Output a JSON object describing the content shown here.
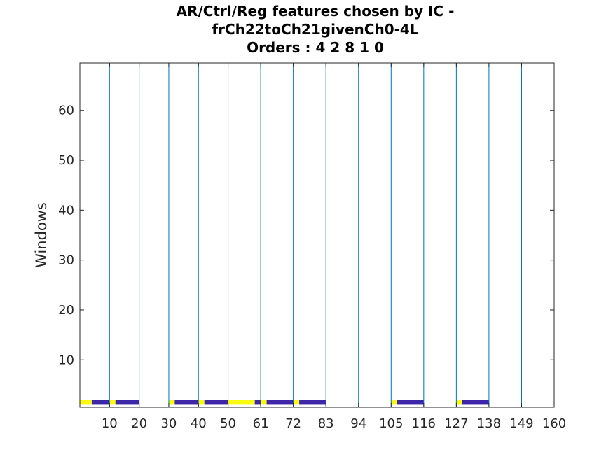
{
  "chart_data": {
    "type": "heatmap",
    "title_lines": [
      "AR/Ctrl/Reg features chosen by IC -",
      "frCh22toCh21givenCh0-4L",
      "Orders : 4 2 8 1 0"
    ],
    "ylabel": "Windows",
    "xlabel": "",
    "xlim": [
      0,
      160
    ],
    "ylim": [
      0.5,
      69.5
    ],
    "xticks": [
      {
        "value": 10,
        "label": "10"
      },
      {
        "value": 20,
        "label": "20"
      },
      {
        "value": 30,
        "label": "30"
      },
      {
        "value": 40,
        "label": "40"
      },
      {
        "value": 50,
        "label": "50"
      },
      {
        "value": 61,
        "label": "61"
      },
      {
        "value": 72,
        "label": "72"
      },
      {
        "value": 83,
        "label": "83"
      },
      {
        "value": 94,
        "label": "94"
      },
      {
        "value": 105,
        "label": "105"
      },
      {
        "value": 116,
        "label": "116"
      },
      {
        "value": 127,
        "label": "127"
      },
      {
        "value": 138,
        "label": "138"
      },
      {
        "value": 149,
        "label": "149"
      },
      {
        "value": 160,
        "label": "160"
      }
    ],
    "yticks": [
      10,
      20,
      30,
      40,
      50,
      60
    ],
    "separator_lines_x": [
      10,
      20,
      30,
      40,
      50,
      61,
      72,
      83,
      94,
      105,
      116,
      127,
      138,
      149,
      160
    ],
    "cell_row": 1.5,
    "cells": [
      {
        "x0": 0,
        "x1": 4,
        "value": "high"
      },
      {
        "x0": 4,
        "x1": 10,
        "value": "low"
      },
      {
        "x0": 10,
        "x1": 12,
        "value": "high"
      },
      {
        "x0": 12,
        "x1": 20,
        "value": "low"
      },
      {
        "x0": 30,
        "x1": 32,
        "value": "high"
      },
      {
        "x0": 32,
        "x1": 40,
        "value": "low"
      },
      {
        "x0": 40,
        "x1": 42,
        "value": "high"
      },
      {
        "x0": 42,
        "x1": 50,
        "value": "low"
      },
      {
        "x0": 50,
        "x1": 59,
        "value": "high"
      },
      {
        "x0": 59,
        "x1": 61,
        "value": "low"
      },
      {
        "x0": 61,
        "x1": 63,
        "value": "high"
      },
      {
        "x0": 63,
        "x1": 72,
        "value": "low"
      },
      {
        "x0": 72,
        "x1": 74,
        "value": "high"
      },
      {
        "x0": 74,
        "x1": 83,
        "value": "low"
      },
      {
        "x0": 105,
        "x1": 107,
        "value": "high"
      },
      {
        "x0": 107,
        "x1": 116,
        "value": "low"
      },
      {
        "x0": 127,
        "x1": 129,
        "value": "high"
      },
      {
        "x0": 129,
        "x1": 138,
        "value": "low"
      }
    ],
    "colors": {
      "high": "#f9fb0e",
      "low": "#3e26a8",
      "separator": "#0072bd",
      "axis": "#262626",
      "background": "#ffffff"
    },
    "grid": false,
    "legend": "none"
  }
}
